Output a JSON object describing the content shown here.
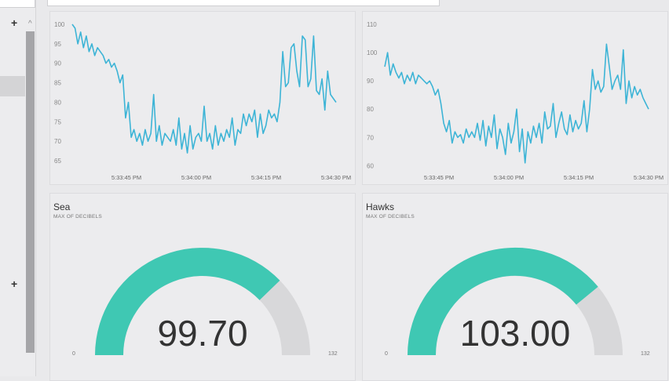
{
  "rail": {
    "plus_top": "+",
    "plus_bottom": "+",
    "chevron": "^"
  },
  "tiles": {
    "line_left": {
      "title": "",
      "chart_data": {
        "type": "line",
        "ylim": [
          63,
          100
        ],
        "yticks": [
          65,
          70,
          75,
          80,
          85,
          90,
          95,
          100
        ],
        "xticks": [
          "5:33:45 PM",
          "5:34:00 PM",
          "5:34:15 PM",
          "5:34:30 PM"
        ],
        "series": [
          {
            "color": "#3db4d6",
            "values": [
              100,
              99,
              95,
              98,
              94,
              97,
              93,
              95,
              92,
              94,
              93,
              92,
              90,
              91,
              89,
              90,
              88,
              85,
              87,
              76,
              80,
              71,
              73,
              70,
              72,
              69,
              73,
              70,
              72,
              82,
              70,
              74,
              69,
              72,
              71,
              70,
              73,
              69,
              76,
              68,
              72,
              67,
              74,
              68,
              71,
              72,
              70,
              79,
              70,
              72,
              68,
              74,
              69,
              72,
              70,
              73,
              71,
              76,
              69,
              73,
              72,
              77,
              74,
              77,
              75,
              78,
              71,
              77,
              72,
              74,
              78,
              76,
              77,
              75,
              80,
              93,
              84,
              85,
              94,
              95,
              88,
              84,
              97,
              96,
              84,
              86,
              97,
              83,
              82,
              86,
              78,
              88,
              82,
              81,
              80
            ]
          }
        ]
      }
    },
    "line_right": {
      "title": "",
      "chart_data": {
        "type": "line",
        "ylim": [
          59,
          110
        ],
        "yticks": [
          60,
          70,
          80,
          90,
          100,
          110
        ],
        "xticks": [
          "5:33:45 PM",
          "5:34:00 PM",
          "5:34:15 PM",
          "5:34:30 PM"
        ],
        "series": [
          {
            "color": "#3db4d6",
            "values": [
              95,
              100,
              92,
              96,
              93,
              91,
              93,
              89,
              92,
              90,
              93,
              89,
              92,
              91,
              90,
              89,
              90,
              88,
              85,
              87,
              82,
              75,
              72,
              76,
              68,
              72,
              70,
              71,
              68,
              73,
              70,
              72,
              70,
              75,
              69,
              76,
              67,
              74,
              70,
              78,
              66,
              73,
              70,
              64,
              75,
              68,
              72,
              80,
              65,
              73,
              61,
              72,
              68,
              74,
              70,
              75,
              68,
              79,
              73,
              74,
              82,
              70,
              75,
              79,
              73,
              71,
              78,
              72,
              76,
              73,
              75,
              83,
              72,
              80,
              94,
              87,
              90,
              86,
              88,
              103,
              95,
              87,
              90,
              92,
              87,
              101,
              82,
              90,
              84,
              88,
              85,
              87,
              84,
              82,
              80
            ]
          }
        ]
      }
    },
    "gauge_left": {
      "title": "Sea",
      "subtitle": "MAX OF DECIBELS",
      "value": "99.70",
      "min": "0",
      "max": "132",
      "chart_data": {
        "type": "gauge",
        "value": 99.7,
        "min": 0,
        "max": 132,
        "fill_color": "#3fc8b3",
        "track_color": "#d8d8da"
      }
    },
    "gauge_right": {
      "title": "Hawks",
      "subtitle": "MAX OF DECIBELS",
      "value": "103.00",
      "min": "0",
      "max": "132",
      "chart_data": {
        "type": "gauge",
        "value": 103,
        "min": 0,
        "max": 132,
        "fill_color": "#3fc8b3",
        "track_color": "#d8d8da"
      }
    }
  }
}
